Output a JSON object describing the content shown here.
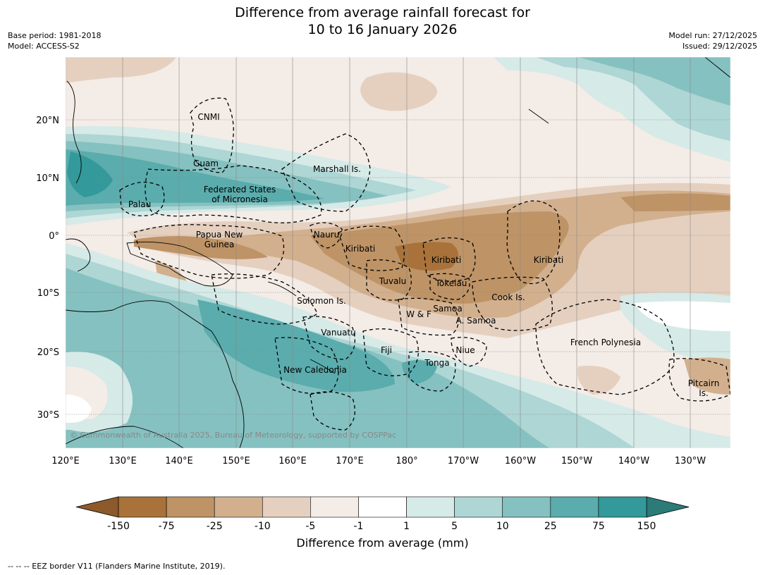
{
  "title_line1": "Difference from average rainfall forecast for",
  "title_line2": "10 to 16 January 2026",
  "meta_left": {
    "base_period": "Base period: 1981-2018",
    "model": "Model: ACCESS-S2"
  },
  "meta_right": {
    "model_run": "Model run: 27/12/2025",
    "issued": "Issued: 29/12/2025"
  },
  "copyright": "© Commonwealth of Australia 2025, Bureau of Meteorology, supported by COSPPac",
  "axes": {
    "lon_ticks": [
      "120°E",
      "130°E",
      "140°E",
      "150°E",
      "160°E",
      "170°E",
      "180°",
      "170°W",
      "160°W",
      "150°W",
      "140°W",
      "130°W"
    ],
    "lat_ticks": [
      "20°N",
      "10°N",
      "0°",
      "10°S",
      "20°S",
      "30°S"
    ]
  },
  "regions": [
    {
      "id": "cnmi",
      "text": "CNMI"
    },
    {
      "id": "guam",
      "text": "Guam"
    },
    {
      "id": "marshall",
      "text": "Marshall Is."
    },
    {
      "id": "fsm1",
      "text": "Federated States"
    },
    {
      "id": "fsm2",
      "text": "of Micronesia"
    },
    {
      "id": "palau",
      "text": "Palau"
    },
    {
      "id": "png1",
      "text": "Papua New"
    },
    {
      "id": "png2",
      "text": "Guinea"
    },
    {
      "id": "nauru",
      "text": "Nauru"
    },
    {
      "id": "kiribati1",
      "text": "Kiribati"
    },
    {
      "id": "kiribati2",
      "text": "Kiribati"
    },
    {
      "id": "kiribati3",
      "text": "Kiribati"
    },
    {
      "id": "tuvalu",
      "text": "Tuvalu"
    },
    {
      "id": "tokelau",
      "text": "Tokelau"
    },
    {
      "id": "cook",
      "text": "Cook Is."
    },
    {
      "id": "solomon",
      "text": "Solomon Is."
    },
    {
      "id": "wf",
      "text": "W & F"
    },
    {
      "id": "samoa",
      "text": "Samoa"
    },
    {
      "id": "asamoa",
      "text": "A. Samoa"
    },
    {
      "id": "vanuatu",
      "text": "Vanuatu"
    },
    {
      "id": "fiji",
      "text": "Fiji"
    },
    {
      "id": "niue",
      "text": "Niue"
    },
    {
      "id": "frenchpoly",
      "text": "French Polynesia"
    },
    {
      "id": "tonga",
      "text": "Tonga"
    },
    {
      "id": "newcal",
      "text": "New Caledonia"
    },
    {
      "id": "pitcairn1",
      "text": "Pitcairn"
    },
    {
      "id": "pitcairn2",
      "text": "Is."
    }
  ],
  "colorbar": {
    "title": "Difference from average (mm)",
    "ticks": [
      "-150",
      "-75",
      "-25",
      "-10",
      "-5",
      "-1",
      "1",
      "5",
      "10",
      "25",
      "75",
      "150"
    ],
    "colors": [
      "#a8723a",
      "#be9366",
      "#d2b08e",
      "#e5d0bf",
      "#f4ece6",
      "#ffffff",
      "#d6eae8",
      "#add6d4",
      "#85c1c0",
      "#5aacad",
      "#33999a"
    ],
    "under_color": "#8c5a2b",
    "over_color": "#2b7b78"
  },
  "footer": "--  --  -- EEZ border V11 (Flanders Marine Institute, 2019)."
}
